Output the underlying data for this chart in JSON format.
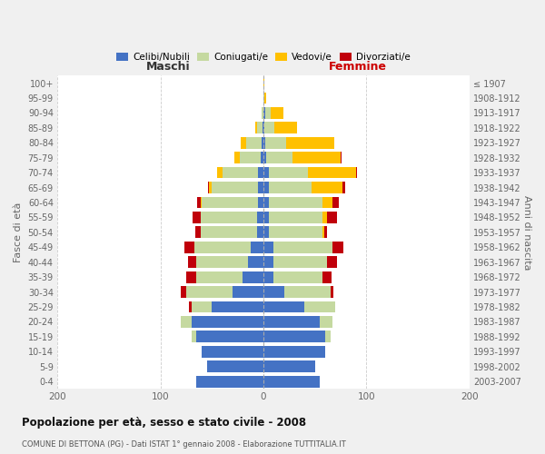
{
  "age_groups": [
    "0-4",
    "5-9",
    "10-14",
    "15-19",
    "20-24",
    "25-29",
    "30-34",
    "35-39",
    "40-44",
    "45-49",
    "50-54",
    "55-59",
    "60-64",
    "65-69",
    "70-74",
    "75-79",
    "80-84",
    "85-89",
    "90-94",
    "95-99",
    "100+"
  ],
  "birth_years": [
    "2003-2007",
    "1998-2002",
    "1993-1997",
    "1988-1992",
    "1983-1987",
    "1978-1982",
    "1973-1977",
    "1968-1972",
    "1963-1967",
    "1958-1962",
    "1953-1957",
    "1948-1952",
    "1943-1947",
    "1938-1942",
    "1933-1937",
    "1928-1932",
    "1923-1927",
    "1918-1922",
    "1913-1917",
    "1908-1912",
    "≤ 1907"
  ],
  "maschi": {
    "celibi": [
      65,
      55,
      60,
      65,
      70,
      50,
      30,
      20,
      15,
      12,
      6,
      6,
      5,
      5,
      5,
      3,
      2,
      1,
      0,
      0,
      0
    ],
    "coniugati": [
      0,
      0,
      0,
      5,
      10,
      20,
      45,
      45,
      50,
      55,
      55,
      55,
      55,
      45,
      35,
      20,
      15,
      5,
      2,
      0,
      0
    ],
    "vedovi": [
      0,
      0,
      0,
      0,
      0,
      0,
      0,
      0,
      0,
      0,
      0,
      0,
      1,
      3,
      5,
      5,
      5,
      2,
      0,
      0,
      0
    ],
    "divorziati": [
      0,
      0,
      0,
      0,
      0,
      2,
      5,
      10,
      8,
      10,
      5,
      8,
      3,
      1,
      0,
      0,
      0,
      0,
      0,
      0,
      0
    ]
  },
  "femmine": {
    "nubili": [
      55,
      50,
      60,
      60,
      55,
      40,
      20,
      10,
      10,
      10,
      5,
      5,
      5,
      5,
      5,
      3,
      2,
      1,
      2,
      0,
      0
    ],
    "coniugate": [
      0,
      0,
      0,
      5,
      12,
      30,
      45,
      47,
      52,
      57,
      52,
      52,
      52,
      42,
      38,
      25,
      20,
      10,
      5,
      1,
      0
    ],
    "vedove": [
      0,
      0,
      0,
      0,
      0,
      0,
      0,
      0,
      0,
      0,
      2,
      5,
      10,
      30,
      47,
      47,
      47,
      22,
      12,
      2,
      1
    ],
    "divorziate": [
      0,
      0,
      0,
      0,
      0,
      0,
      3,
      9,
      9,
      11,
      3,
      9,
      6,
      2,
      1,
      1,
      0,
      0,
      0,
      0,
      0
    ]
  },
  "colors": {
    "celibi": "#4472c4",
    "coniugati": "#c5d9a0",
    "vedovi": "#ffc000",
    "divorziati": "#c0000a"
  },
  "xlim": 200,
  "title": "Popolazione per età, sesso e stato civile - 2008",
  "subtitle": "COMUNE DI BETTONA (PG) - Dati ISTAT 1° gennaio 2008 - Elaborazione TUTTITALIA.IT",
  "ylabel_left": "Fasce di età",
  "ylabel_right": "Anni di nascita",
  "xlabel_maschi": "Maschi",
  "xlabel_femmine": "Femmine",
  "maschi_color": "#333333",
  "femmine_color": "#cc0000",
  "bg_color": "#f0f0f0",
  "plot_bg_color": "#ffffff",
  "grid_color": "#cccccc",
  "tick_color": "#666666"
}
